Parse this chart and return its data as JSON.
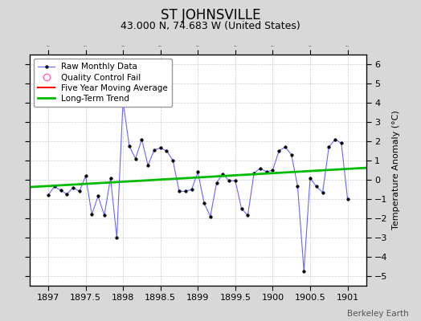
{
  "title": "ST JOHNSVILLE",
  "subtitle": "43.000 N, 74.683 W (United States)",
  "ylabel": "Temperature Anomaly (°C)",
  "watermark": "Berkeley Earth",
  "xlim": [
    1896.75,
    1901.25
  ],
  "ylim": [
    -5.5,
    6.5
  ],
  "xticks": [
    1897,
    1897.5,
    1898,
    1898.5,
    1899,
    1899.5,
    1900,
    1900.5,
    1901
  ],
  "yticks": [
    -5,
    -4,
    -3,
    -2,
    -1,
    0,
    1,
    2,
    3,
    4,
    5,
    6
  ],
  "bg_color": "#d8d8d8",
  "plot_bg_color": "#ffffff",
  "raw_x": [
    1897.0,
    1897.083,
    1897.167,
    1897.25,
    1897.333,
    1897.417,
    1897.5,
    1897.583,
    1897.667,
    1897.75,
    1897.833,
    1897.917,
    1898.0,
    1898.083,
    1898.167,
    1898.25,
    1898.333,
    1898.417,
    1898.5,
    1898.583,
    1898.667,
    1898.75,
    1898.833,
    1898.917,
    1899.0,
    1899.083,
    1899.167,
    1899.25,
    1899.333,
    1899.417,
    1899.5,
    1899.583,
    1899.667,
    1899.75,
    1899.833,
    1899.917,
    1900.0,
    1900.083,
    1900.167,
    1900.25,
    1900.333,
    1900.417,
    1900.5,
    1900.583,
    1900.667,
    1900.75,
    1900.833,
    1900.917,
    1901.0
  ],
  "raw_y": [
    -0.8,
    -0.35,
    -0.55,
    -0.75,
    -0.4,
    -0.6,
    0.2,
    -1.8,
    -0.85,
    -1.85,
    0.1,
    -3.0,
    4.1,
    1.75,
    1.1,
    2.1,
    0.75,
    1.55,
    1.65,
    1.5,
    1.0,
    -0.6,
    -0.6,
    -0.5,
    0.4,
    -1.2,
    -1.9,
    -0.15,
    0.3,
    -0.05,
    -0.05,
    -1.5,
    -1.85,
    0.35,
    0.6,
    0.4,
    0.5,
    1.5,
    1.7,
    1.3,
    -0.35,
    -4.75,
    0.1,
    -0.35,
    -0.65,
    1.7,
    2.1,
    1.9,
    -1.0
  ],
  "trend_x": [
    1896.75,
    1901.25
  ],
  "trend_y": [
    -0.38,
    0.62
  ],
  "raw_line_color": "#6666ff",
  "raw_marker_color": "#000000",
  "trend_color": "#00bb00",
  "mavg_color": "#ff0000",
  "qc_color": "#ff69b4",
  "grid_color": "#cccccc",
  "legend_labels": [
    "Raw Monthly Data",
    "Quality Control Fail",
    "Five Year Moving Average",
    "Long-Term Trend"
  ],
  "title_fontsize": 12,
  "subtitle_fontsize": 9,
  "tick_fontsize": 8,
  "ylabel_fontsize": 8
}
